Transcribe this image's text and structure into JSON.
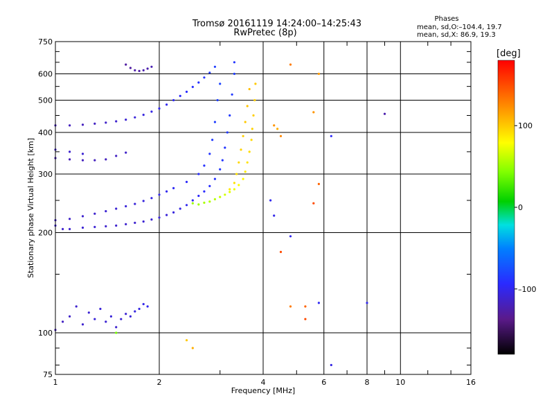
{
  "title": {
    "line1": "Tromsø 20161119 14:24:00–14:25:43",
    "line2": "RwPretec (8p)"
  },
  "stats": {
    "heading": "Phases",
    "o_mode": "mean, sd,O:–104.4, 19.7",
    "x_mode": "mean, sd,X:  86.9, 19.3"
  },
  "colorbar": {
    "label": "[deg]",
    "ticks": [
      "100",
      "0",
      "–100"
    ],
    "tick_values": [
      100,
      0,
      -100
    ],
    "range": [
      -180,
      180
    ]
  },
  "chart_data": {
    "type": "scatter",
    "xlabel": "Frequency [MHz]",
    "ylabel": "Stationary phase Virtual Height [km]",
    "x_scale": "log",
    "y_scale": "log",
    "xlim": [
      1,
      16
    ],
    "ylim": [
      75,
      750
    ],
    "x_ticks": [
      1,
      2,
      4,
      6,
      8,
      10,
      16
    ],
    "x_tick_labels": [
      "1",
      "2",
      "4",
      "6",
      "8",
      "10",
      "16"
    ],
    "y_ticks": [
      75,
      100,
      200,
      300,
      400,
      500,
      600,
      750
    ],
    "y_tick_labels": [
      "75",
      "100",
      "200",
      "300",
      "400",
      "500",
      "600",
      "750"
    ],
    "grid": true,
    "color_by": "phase [deg]",
    "series": [
      {
        "points": [
          [
            1.0,
            210,
            -110
          ],
          [
            1.05,
            205,
            -112
          ],
          [
            1.1,
            205,
            -112
          ],
          [
            1.2,
            207,
            -110
          ],
          [
            1.3,
            208,
            -110
          ],
          [
            1.4,
            209,
            -112
          ],
          [
            1.5,
            210,
            -112
          ],
          [
            1.6,
            212,
            -112
          ],
          [
            1.7,
            214,
            -112
          ],
          [
            1.8,
            216,
            -110
          ],
          [
            1.9,
            219,
            -110
          ],
          [
            2.0,
            222,
            -108
          ],
          [
            2.1,
            226,
            -108
          ],
          [
            2.2,
            230,
            -106
          ],
          [
            2.3,
            236,
            -104
          ],
          [
            2.4,
            242,
            -100
          ],
          [
            2.5,
            250,
            -98
          ],
          [
            2.6,
            258,
            -96
          ],
          [
            2.7,
            266,
            -94
          ],
          [
            2.8,
            276,
            -92
          ],
          [
            2.9,
            290,
            -90
          ],
          [
            3.0,
            310,
            -88
          ],
          [
            3.05,
            330,
            -88
          ],
          [
            3.1,
            360,
            -88
          ],
          [
            3.15,
            400,
            -86
          ],
          [
            3.2,
            450,
            -86
          ],
          [
            3.25,
            520,
            -86
          ],
          [
            3.3,
            600,
            -84
          ]
        ]
      },
      {
        "points": [
          [
            1.0,
            218,
            -114
          ],
          [
            1.1,
            220,
            -114
          ],
          [
            1.2,
            224,
            -112
          ],
          [
            1.3,
            228,
            -112
          ],
          [
            1.4,
            232,
            -110
          ],
          [
            1.5,
            236,
            -110
          ],
          [
            1.6,
            240,
            -108
          ],
          [
            1.7,
            244,
            -108
          ],
          [
            1.8,
            249,
            -106
          ],
          [
            1.9,
            254,
            -104
          ],
          [
            2.0,
            260,
            -102
          ],
          [
            2.1,
            266,
            -100
          ],
          [
            2.2,
            272,
            -98
          ],
          [
            2.4,
            284,
            -96
          ],
          [
            2.6,
            300,
            -92
          ],
          [
            2.7,
            318,
            -90
          ],
          [
            2.8,
            345,
            -88
          ],
          [
            2.85,
            380,
            -86
          ],
          [
            2.9,
            430,
            -84
          ],
          [
            2.95,
            500,
            -82
          ],
          [
            3.0,
            560,
            -80
          ]
        ]
      },
      {
        "points": [
          [
            1.0,
            420,
            -118
          ],
          [
            1.1,
            420,
            -118
          ],
          [
            1.2,
            422,
            -118
          ],
          [
            1.3,
            425,
            -116
          ],
          [
            1.4,
            428,
            -114
          ],
          [
            1.5,
            432,
            -112
          ],
          [
            1.6,
            437,
            -110
          ],
          [
            1.7,
            444,
            -108
          ],
          [
            1.8,
            452,
            -106
          ],
          [
            1.9,
            462,
            -104
          ],
          [
            2.0,
            472,
            -102
          ],
          [
            2.1,
            485,
            -100
          ],
          [
            2.2,
            500,
            -98
          ],
          [
            2.3,
            515,
            -96
          ],
          [
            2.4,
            530,
            -94
          ],
          [
            2.5,
            548,
            -92
          ],
          [
            2.6,
            565,
            -90
          ],
          [
            2.7,
            585,
            -88
          ],
          [
            2.8,
            605,
            -86
          ],
          [
            2.9,
            630,
            -84
          ]
        ]
      },
      {
        "points": [
          [
            1.0,
            335,
            -120
          ],
          [
            1.1,
            332,
            -120
          ],
          [
            1.2,
            330,
            -118
          ],
          [
            1.3,
            330,
            -118
          ],
          [
            1.4,
            332,
            -118
          ],
          [
            1.5,
            340,
            -116
          ],
          [
            1.6,
            348,
            -114
          ],
          [
            1.0,
            355,
            -112
          ],
          [
            1.1,
            350,
            -112
          ],
          [
            1.2,
            345,
            -110
          ]
        ]
      },
      {
        "points": [
          [
            1.6,
            640,
            -128
          ],
          [
            1.65,
            625,
            -128
          ],
          [
            1.7,
            615,
            -126
          ],
          [
            1.75,
            612,
            -126
          ],
          [
            1.8,
            615,
            -124
          ],
          [
            1.85,
            622,
            -124
          ],
          [
            1.9,
            630,
            -122
          ]
        ]
      },
      {
        "points": [
          [
            1.0,
            102,
            -118
          ],
          [
            1.05,
            108,
            -116
          ],
          [
            1.1,
            112,
            -114
          ],
          [
            1.15,
            120,
            -112
          ],
          [
            1.2,
            106,
            -112
          ],
          [
            1.25,
            115,
            -110
          ],
          [
            1.3,
            110,
            -108
          ],
          [
            1.35,
            118,
            -108
          ],
          [
            1.4,
            108,
            -110
          ],
          [
            1.45,
            112,
            -108
          ],
          [
            1.5,
            104,
            -112
          ],
          [
            1.55,
            110,
            -110
          ],
          [
            1.6,
            114,
            -110
          ],
          [
            1.65,
            112,
            -108
          ],
          [
            1.7,
            116,
            -106
          ],
          [
            1.75,
            118,
            -104
          ],
          [
            1.8,
            122,
            -102
          ],
          [
            1.85,
            120,
            -100
          ]
        ]
      },
      {
        "points": [
          [
            2.5,
            245,
            50
          ],
          [
            2.6,
            243,
            52
          ],
          [
            2.7,
            246,
            54
          ],
          [
            2.8,
            248,
            56
          ],
          [
            2.9,
            252,
            58
          ],
          [
            3.0,
            256,
            62
          ],
          [
            3.1,
            260,
            66
          ],
          [
            3.2,
            265,
            70
          ],
          [
            3.3,
            270,
            74
          ],
          [
            3.4,
            278,
            78
          ],
          [
            3.5,
            290,
            82
          ],
          [
            3.55,
            305,
            86
          ],
          [
            3.6,
            325,
            90
          ],
          [
            3.65,
            350,
            92
          ],
          [
            3.7,
            380,
            94
          ],
          [
            3.72,
            410,
            96
          ],
          [
            3.75,
            450,
            98
          ],
          [
            3.78,
            500,
            98
          ],
          [
            3.8,
            560,
            100
          ]
        ]
      },
      {
        "points": [
          [
            3.2,
            270,
            88
          ],
          [
            3.3,
            282,
            90
          ],
          [
            3.35,
            300,
            92
          ],
          [
            3.4,
            325,
            94
          ],
          [
            3.45,
            355,
            96
          ],
          [
            3.5,
            390,
            98
          ],
          [
            3.55,
            430,
            100
          ],
          [
            3.6,
            480,
            102
          ],
          [
            3.65,
            540,
            104
          ]
        ]
      },
      {
        "points": [
          [
            4.3,
            420,
            120
          ],
          [
            4.5,
            390,
            126
          ],
          [
            4.4,
            410,
            110
          ],
          [
            4.8,
            640,
            130
          ],
          [
            4.8,
            120,
            130
          ],
          [
            5.3,
            120,
            140
          ],
          [
            4.5,
            175,
            150
          ],
          [
            5.3,
            110,
            150
          ],
          [
            5.6,
            460,
            120
          ],
          [
            5.8,
            600,
            118
          ],
          [
            5.8,
            280,
            140
          ],
          [
            5.6,
            245,
            150
          ],
          [
            2.5,
            90,
            110
          ],
          [
            2.4,
            95,
            100
          ],
          [
            1.5,
            100,
            40
          ]
        ]
      },
      {
        "points": [
          [
            4.2,
            250,
            -100
          ],
          [
            4.3,
            225,
            -102
          ],
          [
            4.8,
            195,
            -100
          ],
          [
            6.3,
            390,
            -96
          ],
          [
            5.8,
            123,
            -98
          ],
          [
            8.0,
            123,
            -100
          ],
          [
            9.0,
            455,
            -124
          ],
          [
            6.3,
            80,
            -104
          ],
          [
            3.3,
            650,
            -88
          ]
        ]
      }
    ]
  }
}
